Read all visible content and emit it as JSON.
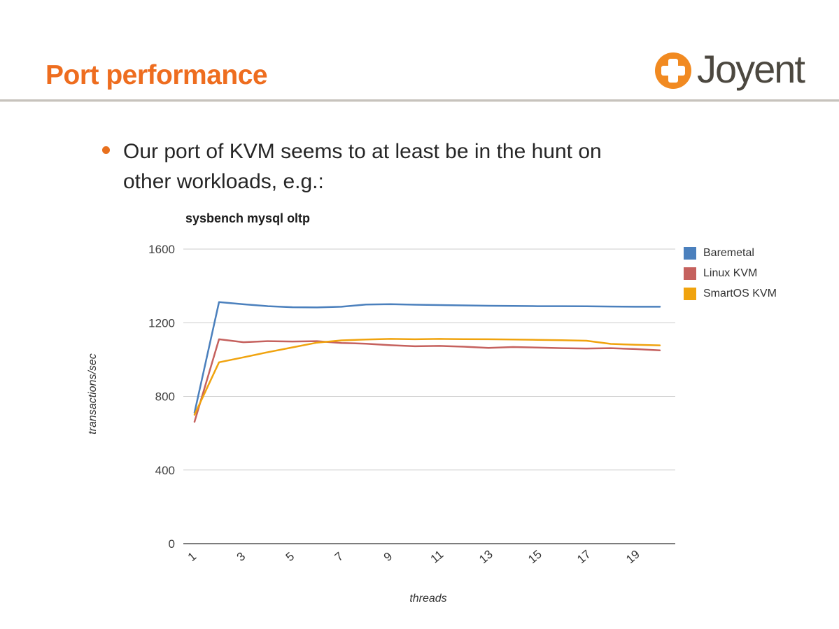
{
  "header": {
    "title": "Port performance",
    "title_color": "#ee6d1f",
    "logo_text": "Joyent",
    "logo_orange": "#f18a21",
    "logo_text_color": "#4c4840"
  },
  "bullet": {
    "line1": "Our port of KVM seems to at least be in the hunt on",
    "line2": "other workloads, e.g.:",
    "dot_color": "#e8701d"
  },
  "chart_data": {
    "type": "line",
    "title": "sysbench mysql oltp",
    "xlabel": "threads",
    "ylabel": "transactions/sec",
    "xlim": [
      1,
      20
    ],
    "ylim": [
      0,
      1600
    ],
    "grid": "horizontal-only",
    "legend_position": "right",
    "y_ticks": [
      0,
      400,
      800,
      1200,
      1600
    ],
    "x_tick_values": [
      1,
      3,
      5,
      7,
      9,
      11,
      13,
      15,
      17,
      19
    ],
    "x_tick_labels": [
      "1",
      "3",
      "5",
      "7",
      "9",
      "11",
      "13",
      "15",
      "17",
      "19"
    ],
    "x": [
      1,
      2,
      3,
      4,
      5,
      6,
      7,
      8,
      9,
      10,
      11,
      12,
      13,
      14,
      15,
      16,
      17,
      18,
      19,
      20
    ],
    "series": [
      {
        "name": "Baremetal",
        "color": "#4b80bd",
        "values": [
          712,
          1312,
          1300,
          1290,
          1284,
          1283,
          1287,
          1299,
          1301,
          1298,
          1296,
          1294,
          1292,
          1291,
          1290,
          1290,
          1289,
          1288,
          1287,
          1287
        ]
      },
      {
        "name": "Linux KVM",
        "color": "#c5615e",
        "values": [
          662,
          1110,
          1094,
          1100,
          1098,
          1100,
          1090,
          1086,
          1078,
          1072,
          1074,
          1070,
          1063,
          1068,
          1065,
          1062,
          1060,
          1062,
          1057,
          1050
        ]
      },
      {
        "name": "SmartOS KVM",
        "color": "#f0a30e",
        "values": [
          700,
          985,
          1012,
          1040,
          1066,
          1092,
          1104,
          1109,
          1112,
          1110,
          1112,
          1111,
          1110,
          1109,
          1107,
          1105,
          1102,
          1085,
          1080,
          1077
        ]
      }
    ]
  }
}
